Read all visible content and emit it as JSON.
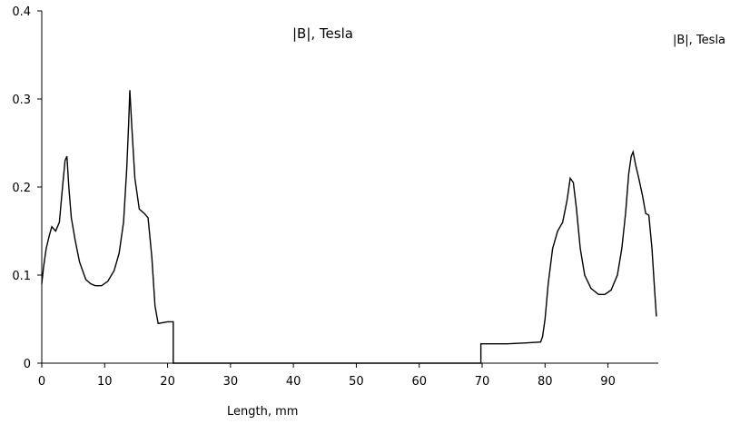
{
  "chart_data": {
    "type": "line",
    "title": "|B|, Tesla",
    "xlabel": "Length, mm",
    "ylabel": "",
    "xlim": [
      0,
      98
    ],
    "ylim": [
      0,
      0.4
    ],
    "x_ticks": [
      "0",
      "10",
      "20",
      "30",
      "40",
      "50",
      "60",
      "70",
      "80",
      "90"
    ],
    "y_ticks": [
      "0",
      "0.1",
      "0.2",
      "0.3",
      "0.4"
    ],
    "grid": false,
    "legend": {
      "position": "right",
      "entries": [
        "|B|, Tesla"
      ]
    },
    "series": [
      {
        "name": "|B|, Tesla",
        "color": "#000000",
        "points": [
          [
            0,
            0.09
          ],
          [
            0.3,
            0.11
          ],
          [
            0.7,
            0.13
          ],
          [
            1.2,
            0.145
          ],
          [
            1.6,
            0.155
          ],
          [
            2.2,
            0.15
          ],
          [
            2.8,
            0.16
          ],
          [
            3.3,
            0.2
          ],
          [
            3.7,
            0.23
          ],
          [
            4.0,
            0.235
          ],
          [
            4.3,
            0.2
          ],
          [
            4.7,
            0.165
          ],
          [
            5.3,
            0.14
          ],
          [
            6.0,
            0.115
          ],
          [
            7.0,
            0.095
          ],
          [
            7.8,
            0.09
          ],
          [
            8.5,
            0.088
          ],
          [
            9.5,
            0.088
          ],
          [
            10.5,
            0.093
          ],
          [
            11.5,
            0.105
          ],
          [
            12.3,
            0.125
          ],
          [
            13.0,
            0.16
          ],
          [
            13.5,
            0.22
          ],
          [
            13.8,
            0.27
          ],
          [
            14.0,
            0.31
          ],
          [
            14.3,
            0.27
          ],
          [
            14.8,
            0.21
          ],
          [
            15.5,
            0.175
          ],
          [
            16.3,
            0.17
          ],
          [
            16.9,
            0.165
          ],
          [
            17.5,
            0.12
          ],
          [
            18.0,
            0.065
          ],
          [
            18.5,
            0.045
          ],
          [
            19.2,
            0.046
          ],
          [
            20.0,
            0.047
          ],
          [
            20.9,
            0.047
          ],
          [
            20.9,
            0.0
          ],
          [
            69.8,
            0.0
          ],
          [
            69.8,
            0.022
          ],
          [
            74.0,
            0.022
          ],
          [
            77.0,
            0.023
          ],
          [
            79.3,
            0.024
          ],
          [
            79.6,
            0.03
          ],
          [
            80.0,
            0.05
          ],
          [
            80.5,
            0.09
          ],
          [
            81.2,
            0.13
          ],
          [
            82.0,
            0.15
          ],
          [
            82.8,
            0.16
          ],
          [
            83.5,
            0.185
          ],
          [
            84.0,
            0.21
          ],
          [
            84.5,
            0.205
          ],
          [
            85.0,
            0.175
          ],
          [
            85.6,
            0.13
          ],
          [
            86.3,
            0.1
          ],
          [
            87.3,
            0.085
          ],
          [
            88.5,
            0.078
          ],
          [
            89.5,
            0.078
          ],
          [
            90.5,
            0.083
          ],
          [
            91.5,
            0.1
          ],
          [
            92.2,
            0.13
          ],
          [
            92.8,
            0.17
          ],
          [
            93.3,
            0.215
          ],
          [
            93.7,
            0.235
          ],
          [
            94.0,
            0.24
          ],
          [
            94.4,
            0.225
          ],
          [
            94.9,
            0.21
          ],
          [
            95.5,
            0.19
          ],
          [
            96.0,
            0.17
          ],
          [
            96.5,
            0.168
          ],
          [
            97.0,
            0.13
          ],
          [
            97.4,
            0.085
          ],
          [
            97.7,
            0.053
          ]
        ]
      }
    ]
  }
}
